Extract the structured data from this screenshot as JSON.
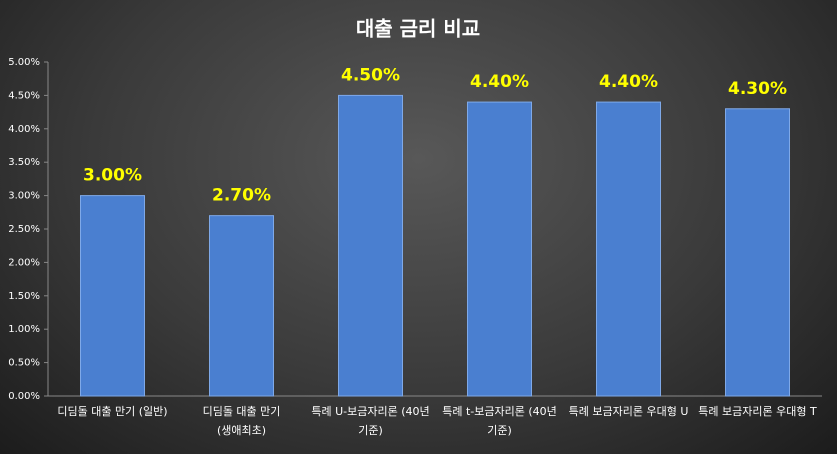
{
  "chart_data": {
    "type": "bar",
    "title": "대출 금리 비교",
    "categories": [
      "디딤돌 대출 만기 (일반)",
      "디딤돌 대출 만기 (생애최초)",
      "특례 U-보금자리론 (40년 기준)",
      "특례 t-보금자리론 (40년 기준)",
      "특례 보금자리론 우대형 U",
      "특례 보금자리론 우대형 T"
    ],
    "values": [
      3.0,
      2.7,
      4.5,
      4.4,
      4.4,
      4.3
    ],
    "value_labels": [
      "3.00%",
      "2.70%",
      "4.50%",
      "4.40%",
      "4.40%",
      "4.30%"
    ],
    "color": "#4a7fd0",
    "ylim": [
      0,
      5
    ],
    "yticks": [
      {
        "value": 0,
        "label": "0.00%"
      },
      {
        "value": 0.5,
        "label": "0.50%"
      },
      {
        "value": 1,
        "label": "1.00%"
      },
      {
        "value": 1.5,
        "label": "1.50%"
      },
      {
        "value": 2,
        "label": "2.00%"
      },
      {
        "value": 2.5,
        "label": "2.50%"
      },
      {
        "value": 3,
        "label": "3.00%"
      },
      {
        "value": 3.5,
        "label": "3.50%"
      },
      {
        "value": 4,
        "label": "4.00%"
      },
      {
        "value": 4.5,
        "label": "4.50%"
      },
      {
        "value": 5,
        "label": "5.00%"
      }
    ],
    "grid": false
  }
}
